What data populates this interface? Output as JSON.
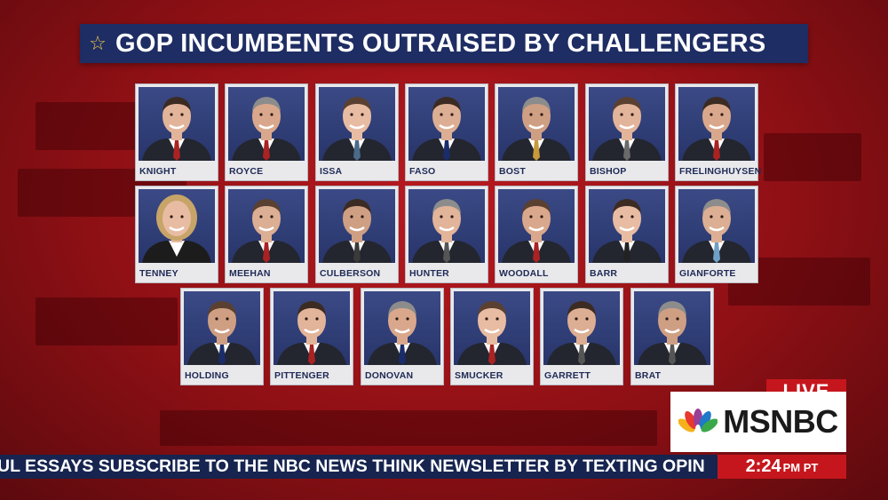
{
  "title": "GOP INCUMBENTS OUTRAISED BY CHALLENGERS",
  "title_icon": "star-outline-icon",
  "rows": [
    [
      {
        "name": "KNIGHT",
        "tie": "#a22"
      },
      {
        "name": "ROYCE",
        "tie": "#a22"
      },
      {
        "name": "ISSA",
        "tie": "#4a6a8a"
      },
      {
        "name": "FASO",
        "tie": "#1b2c6a"
      },
      {
        "name": "BOST",
        "tie": "#c89a3a"
      },
      {
        "name": "BISHOP",
        "tie": "#6a6a6a"
      },
      {
        "name": "FRELINGHUYSEN",
        "tie": "#a22"
      }
    ],
    [
      {
        "name": "TENNEY",
        "tie": "#2b2b2b"
      },
      {
        "name": "MEEHAN",
        "tie": "#a22"
      },
      {
        "name": "CULBERSON",
        "tie": "#3a3a3a"
      },
      {
        "name": "HUNTER",
        "tie": "#555"
      },
      {
        "name": "WOODALL",
        "tie": "#a22"
      },
      {
        "name": "BARR",
        "tie": "#222"
      },
      {
        "name": "GIANFORTE",
        "tie": "#6fa0c8"
      }
    ],
    [
      {
        "name": "HOLDING",
        "tie": "#1b2c6a"
      },
      {
        "name": "PITTENGER",
        "tie": "#a22"
      },
      {
        "name": "DONOVAN",
        "tie": "#1b2c6a"
      },
      {
        "name": "SMUCKER",
        "tie": "#a22"
      },
      {
        "name": "GARRETT",
        "tie": "#555"
      },
      {
        "name": "BRAT",
        "tie": "#555"
      }
    ]
  ],
  "live_label": "LIVE",
  "network": "MSNBC",
  "network_icon": "peacock-icon",
  "ticker_text": "UL ESSAYS SUBSCRIBE TO THE NBC NEWS THINK NEWSLETTER BY TEXTING OPIN",
  "clock": {
    "time": "2:24",
    "period": "PM PT"
  },
  "colors": {
    "banner": "#1e2d63",
    "background": "#8e0d12",
    "live": "#c6161d",
    "star": "#f1c94a"
  }
}
